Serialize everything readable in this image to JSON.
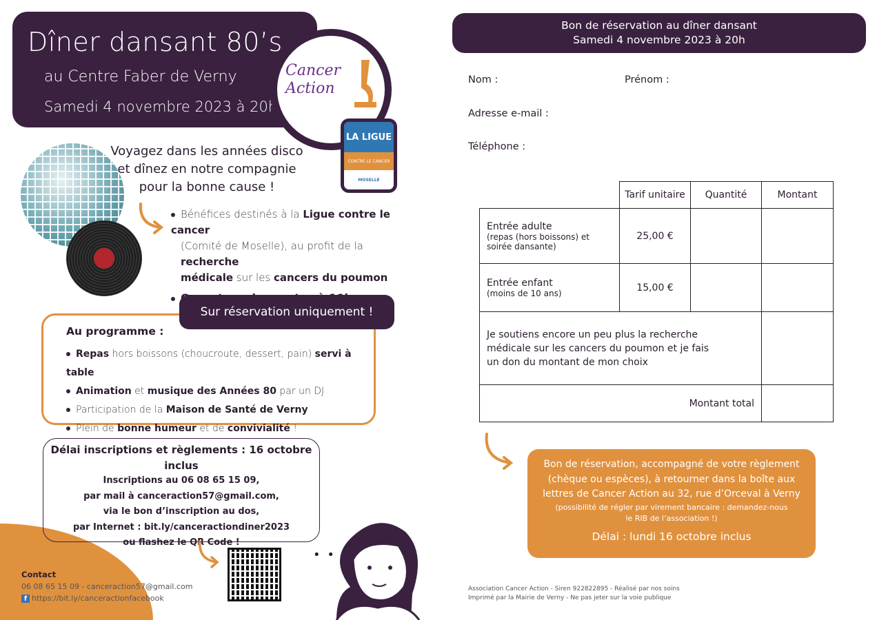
{
  "flyer": {
    "title": "Dîner dansant 80’s",
    "venue": "au Centre Faber de Verny",
    "date": "Samedi 4 novembre 2023 à 20h",
    "logos": {
      "cancer_action": "Cancer Action",
      "ligue_top": "LA LIGUE",
      "ligue_mid": "CONTRE LE CANCER",
      "ligue_bottom": "MOSELLE"
    },
    "intro": [
      "Voyagez dans les années disco",
      "et dînez en notre compagnie",
      "pour la bonne cause !"
    ],
    "bullets": [
      {
        "a": "Bénéfices destinés à la ",
        "b": "Ligue contre le cancer",
        "c": ""
      },
      {
        "a": "(Comité de Moselle), au profit de la ",
        "b": "recherche",
        "c": ""
      },
      {
        "a": "",
        "b": "médicale",
        "c": " sur les "
      },
      {
        "a": "",
        "b": "Ouverture des portes à 19h",
        "c": ""
      }
    ],
    "bullet_cont": "cancers du poumon",
    "reservation_pill": "Sur réservation uniquement !",
    "programme_title": "Au programme :",
    "programme": [
      [
        "Repas",
        " hors boissons (choucroute, dessert, pain) ",
        "servi à table",
        ""
      ],
      [
        "Animation",
        " et ",
        "musique des Années 80",
        " par un DJ"
      ],
      [
        "",
        "Participation de la ",
        "Maison de Santé de Verny",
        ""
      ],
      [
        "",
        "Plein de ",
        "bonne humeur",
        " et de "
      ]
    ],
    "programme_last": "convivialité",
    "programme_end": " !",
    "deadline": [
      "Délai inscriptions et règlements : 16 octobre inclus",
      "Inscriptions au 06 08 65 15 09,",
      "par mail à canceraction57@gmail.com,",
      "via le bon d’inscription au dos,",
      "par Internet : bit.ly/canceractiondiner2023",
      "ou flashez le QR Code !"
    ],
    "contact": {
      "title": "Contact",
      "line1": "06 08 65 15 09 - canceraction57@gmail.com",
      "line2": "https://bit.ly/canceractionfacebook"
    }
  },
  "form": {
    "header": [
      "Bon de réservation au dîner dansant",
      "Samedi 4 novembre 2023 à 20h"
    ],
    "fields": {
      "nom": "Nom :",
      "prenom": "Prénom :",
      "email": "Adresse e-mail :",
      "tel": "Téléphone :"
    },
    "table": {
      "headers": [
        "",
        "Tarif unitaire",
        "Quantité",
        "Montant"
      ],
      "rows": [
        {
          "label": "Entrée adulte",
          "sub": "(repas (hors boissons) et soirée dansante)",
          "price": "25,00 €"
        },
        {
          "label": "Entrée enfant",
          "sub": "(moins de 10 ans)",
          "price": "15,00 €"
        }
      ],
      "donation": "Je soutiens encore un peu plus la recherche médicale sur les cancers du poumon et je fais un don du montant de mon choix",
      "total": "Montant total"
    },
    "instructions": [
      "Bon de réservation, accompagné de votre règlement",
      "(chèque ou espèces), à retourner dans la boîte aux",
      "lettres de Cancer Action au 32, rue d’Orceval à Verny"
    ],
    "instructions_small": [
      "(possibilité de régler par virement bancaire : demandez-nous",
      "le RIB de l’association !)"
    ],
    "deadline": "Délai : lundi 16 octobre inclus",
    "footer": [
      "Association Cancer Action - Siren 922822895 - Réalisé par nos soins",
      "Imprimé par la Mairie de Verny - Ne pas jeter sur la voie publique"
    ]
  },
  "colors": {
    "purple": "#3a2140",
    "orange": "#e0913e",
    "blue": "#2f78b4"
  }
}
